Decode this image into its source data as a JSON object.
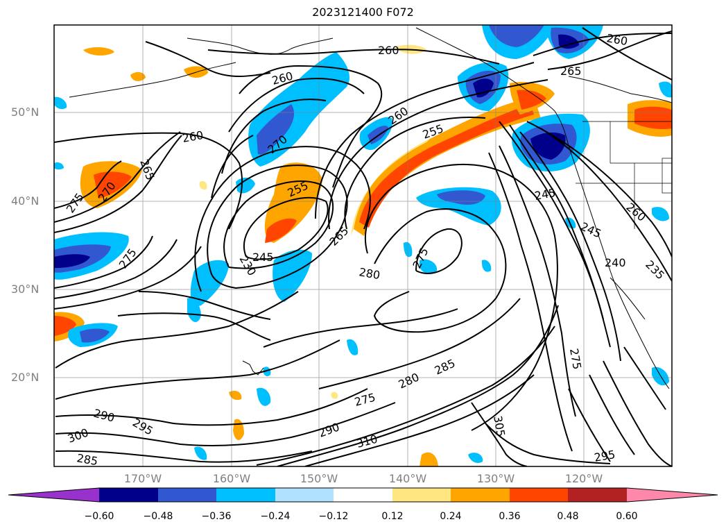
{
  "title": "2023121400 F072",
  "latitude_labels": [
    "50°N",
    "40°N",
    "30°N",
    "20°N"
  ],
  "longitude_labels": [
    "170°W",
    "160°W",
    "150°W",
    "140°W",
    "130°W",
    "120°W"
  ],
  "colorbar": {
    "ticks": [
      "−0.60",
      "−0.48",
      "−0.36",
      "−0.24",
      "−0.12",
      "0.12",
      "0.24",
      "0.36",
      "0.48",
      "0.60"
    ],
    "colors": [
      "#9932cc",
      "#00008b",
      "#3158d0",
      "#00bfff",
      "#b0e2ff",
      "#ffffff",
      "#ffe680",
      "#ffa500",
      "#ff4500",
      "#b22222",
      "#ff88aa"
    ]
  },
  "contour_labels": [
    "260",
    "260",
    "260",
    "265",
    "255",
    "260",
    "270",
    "265",
    "260",
    "275",
    "270",
    "255",
    "245",
    "230",
    "265",
    "280",
    "275",
    "245",
    "245",
    "240",
    "235",
    "260",
    "275",
    "275",
    "280",
    "285",
    "290",
    "295",
    "300",
    "285",
    "290",
    "310",
    "305",
    "295",
    "275"
  ]
}
